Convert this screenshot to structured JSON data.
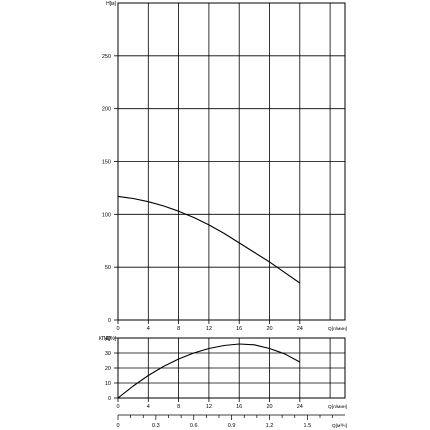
{
  "chart_data": [
    {
      "id": "head",
      "type": "line",
      "ylabel": "H[м]",
      "xlim": [
        0,
        30
      ],
      "ylim": [
        0,
        300
      ],
      "yticks": [
        0,
        50,
        100,
        150,
        200,
        250
      ],
      "grid": true,
      "series": [
        {
          "x": [
            0,
            2,
            4,
            6,
            8,
            10,
            12,
            14,
            16,
            18,
            20,
            22,
            24
          ],
          "y": [
            117,
            115,
            112,
            108,
            103,
            97,
            90,
            82,
            73,
            64,
            55,
            45,
            35
          ]
        }
      ]
    },
    {
      "id": "efficiency",
      "type": "line",
      "ylabel": "КПД[%]",
      "xlim": [
        0,
        30
      ],
      "ylim": [
        0,
        40
      ],
      "yticks": [
        0,
        10,
        20,
        30,
        40
      ],
      "grid": true,
      "series": [
        {
          "x": [
            0,
            2,
            4,
            6,
            8,
            10,
            12,
            14,
            16,
            18,
            20,
            22,
            24
          ],
          "y": [
            0,
            8,
            15,
            21,
            26,
            30,
            33,
            35,
            36,
            35.5,
            33,
            29.5,
            24
          ]
        }
      ]
    }
  ],
  "x_axis_lpm": {
    "label": "Q[л/мин]",
    "ticks": [
      "0",
      "4",
      "8",
      "12",
      "16",
      "20",
      "24"
    ]
  },
  "x_axis_m3h": {
    "label": "Q[м³/ч]",
    "ticks": [
      "0",
      "0.3",
      "0.6",
      "0.9",
      "1.2",
      "1.5"
    ]
  }
}
